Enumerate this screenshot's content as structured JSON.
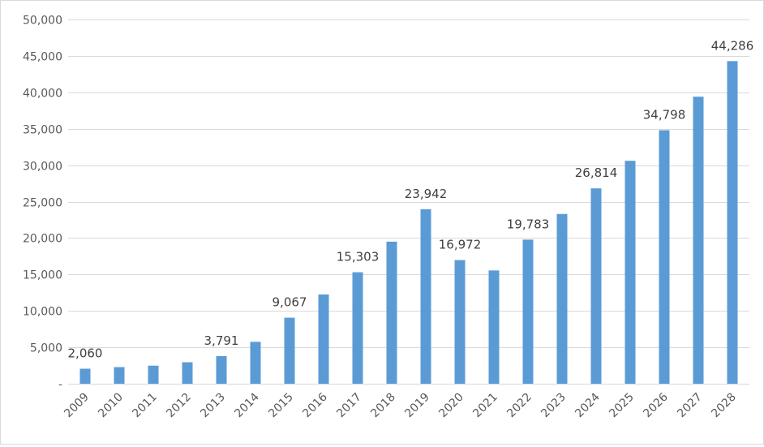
{
  "chart_data": {
    "type": "bar",
    "title": "",
    "xlabel": "",
    "ylabel": "",
    "categories": [
      "2009",
      "2010",
      "2011",
      "2012",
      "2013",
      "2014",
      "2015",
      "2016",
      "2017",
      "2018",
      "2019",
      "2020",
      "2021",
      "2022",
      "2023",
      "2024",
      "2025",
      "2026",
      "2027",
      "2028"
    ],
    "values": [
      2060,
      2280,
      2480,
      2950,
      3791,
      5750,
      9067,
      12250,
      15303,
      19500,
      23942,
      16972,
      15550,
      19783,
      23300,
      26814,
      30600,
      34798,
      39400,
      44286
    ],
    "data_labels": [
      "2,060",
      "",
      "",
      "",
      "3,791",
      "",
      "9,067",
      "",
      "15,303",
      "",
      "23,942",
      "16,972",
      "",
      "19,783",
      "",
      "26,814",
      "",
      "34,798",
      "",
      "44,286"
    ],
    "ylim": [
      0,
      50000
    ],
    "y_ticks": [
      0,
      5000,
      10000,
      15000,
      20000,
      25000,
      30000,
      35000,
      40000,
      45000,
      50000
    ],
    "y_tick_labels": [
      "-",
      "5,000",
      "10,000",
      "15,000",
      "20,000",
      "25,000",
      "30,000",
      "35,000",
      "40,000",
      "45,000",
      "50,000"
    ],
    "grid": true,
    "legend": "none",
    "colors": {
      "bar": "#5b9bd5",
      "grid": "#d9d9d9",
      "text": "#595959"
    }
  }
}
